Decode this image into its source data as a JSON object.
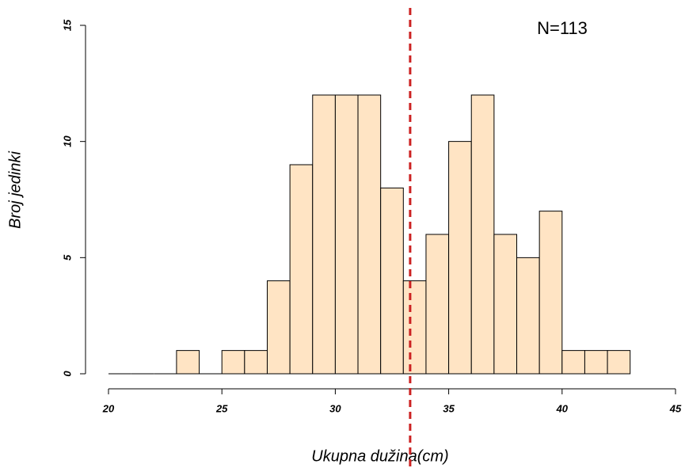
{
  "chart_data": {
    "type": "histogram",
    "x_label": "Ukupna dužina(cm)",
    "y_label": "Broj jedinki",
    "annotation": "N=113",
    "bins": [
      20,
      21,
      22,
      23,
      24,
      25,
      26,
      27,
      28,
      29,
      30,
      31,
      32,
      33,
      34,
      35,
      36,
      37,
      38,
      39,
      40,
      41,
      42,
      43
    ],
    "values": [
      0,
      0,
      0,
      1,
      0,
      1,
      1,
      4,
      9,
      12,
      12,
      12,
      8,
      4,
      6,
      10,
      12,
      6,
      5,
      7,
      1,
      1,
      1
    ],
    "color": "#ffe4c4",
    "mean_line": 33.3,
    "mean_line_color": "#cc2222",
    "xlim": [
      20,
      45
    ],
    "xticks": [
      20,
      25,
      30,
      35,
      40,
      45
    ],
    "ylim": [
      0,
      15
    ],
    "yticks": [
      0,
      5,
      10,
      15
    ]
  }
}
